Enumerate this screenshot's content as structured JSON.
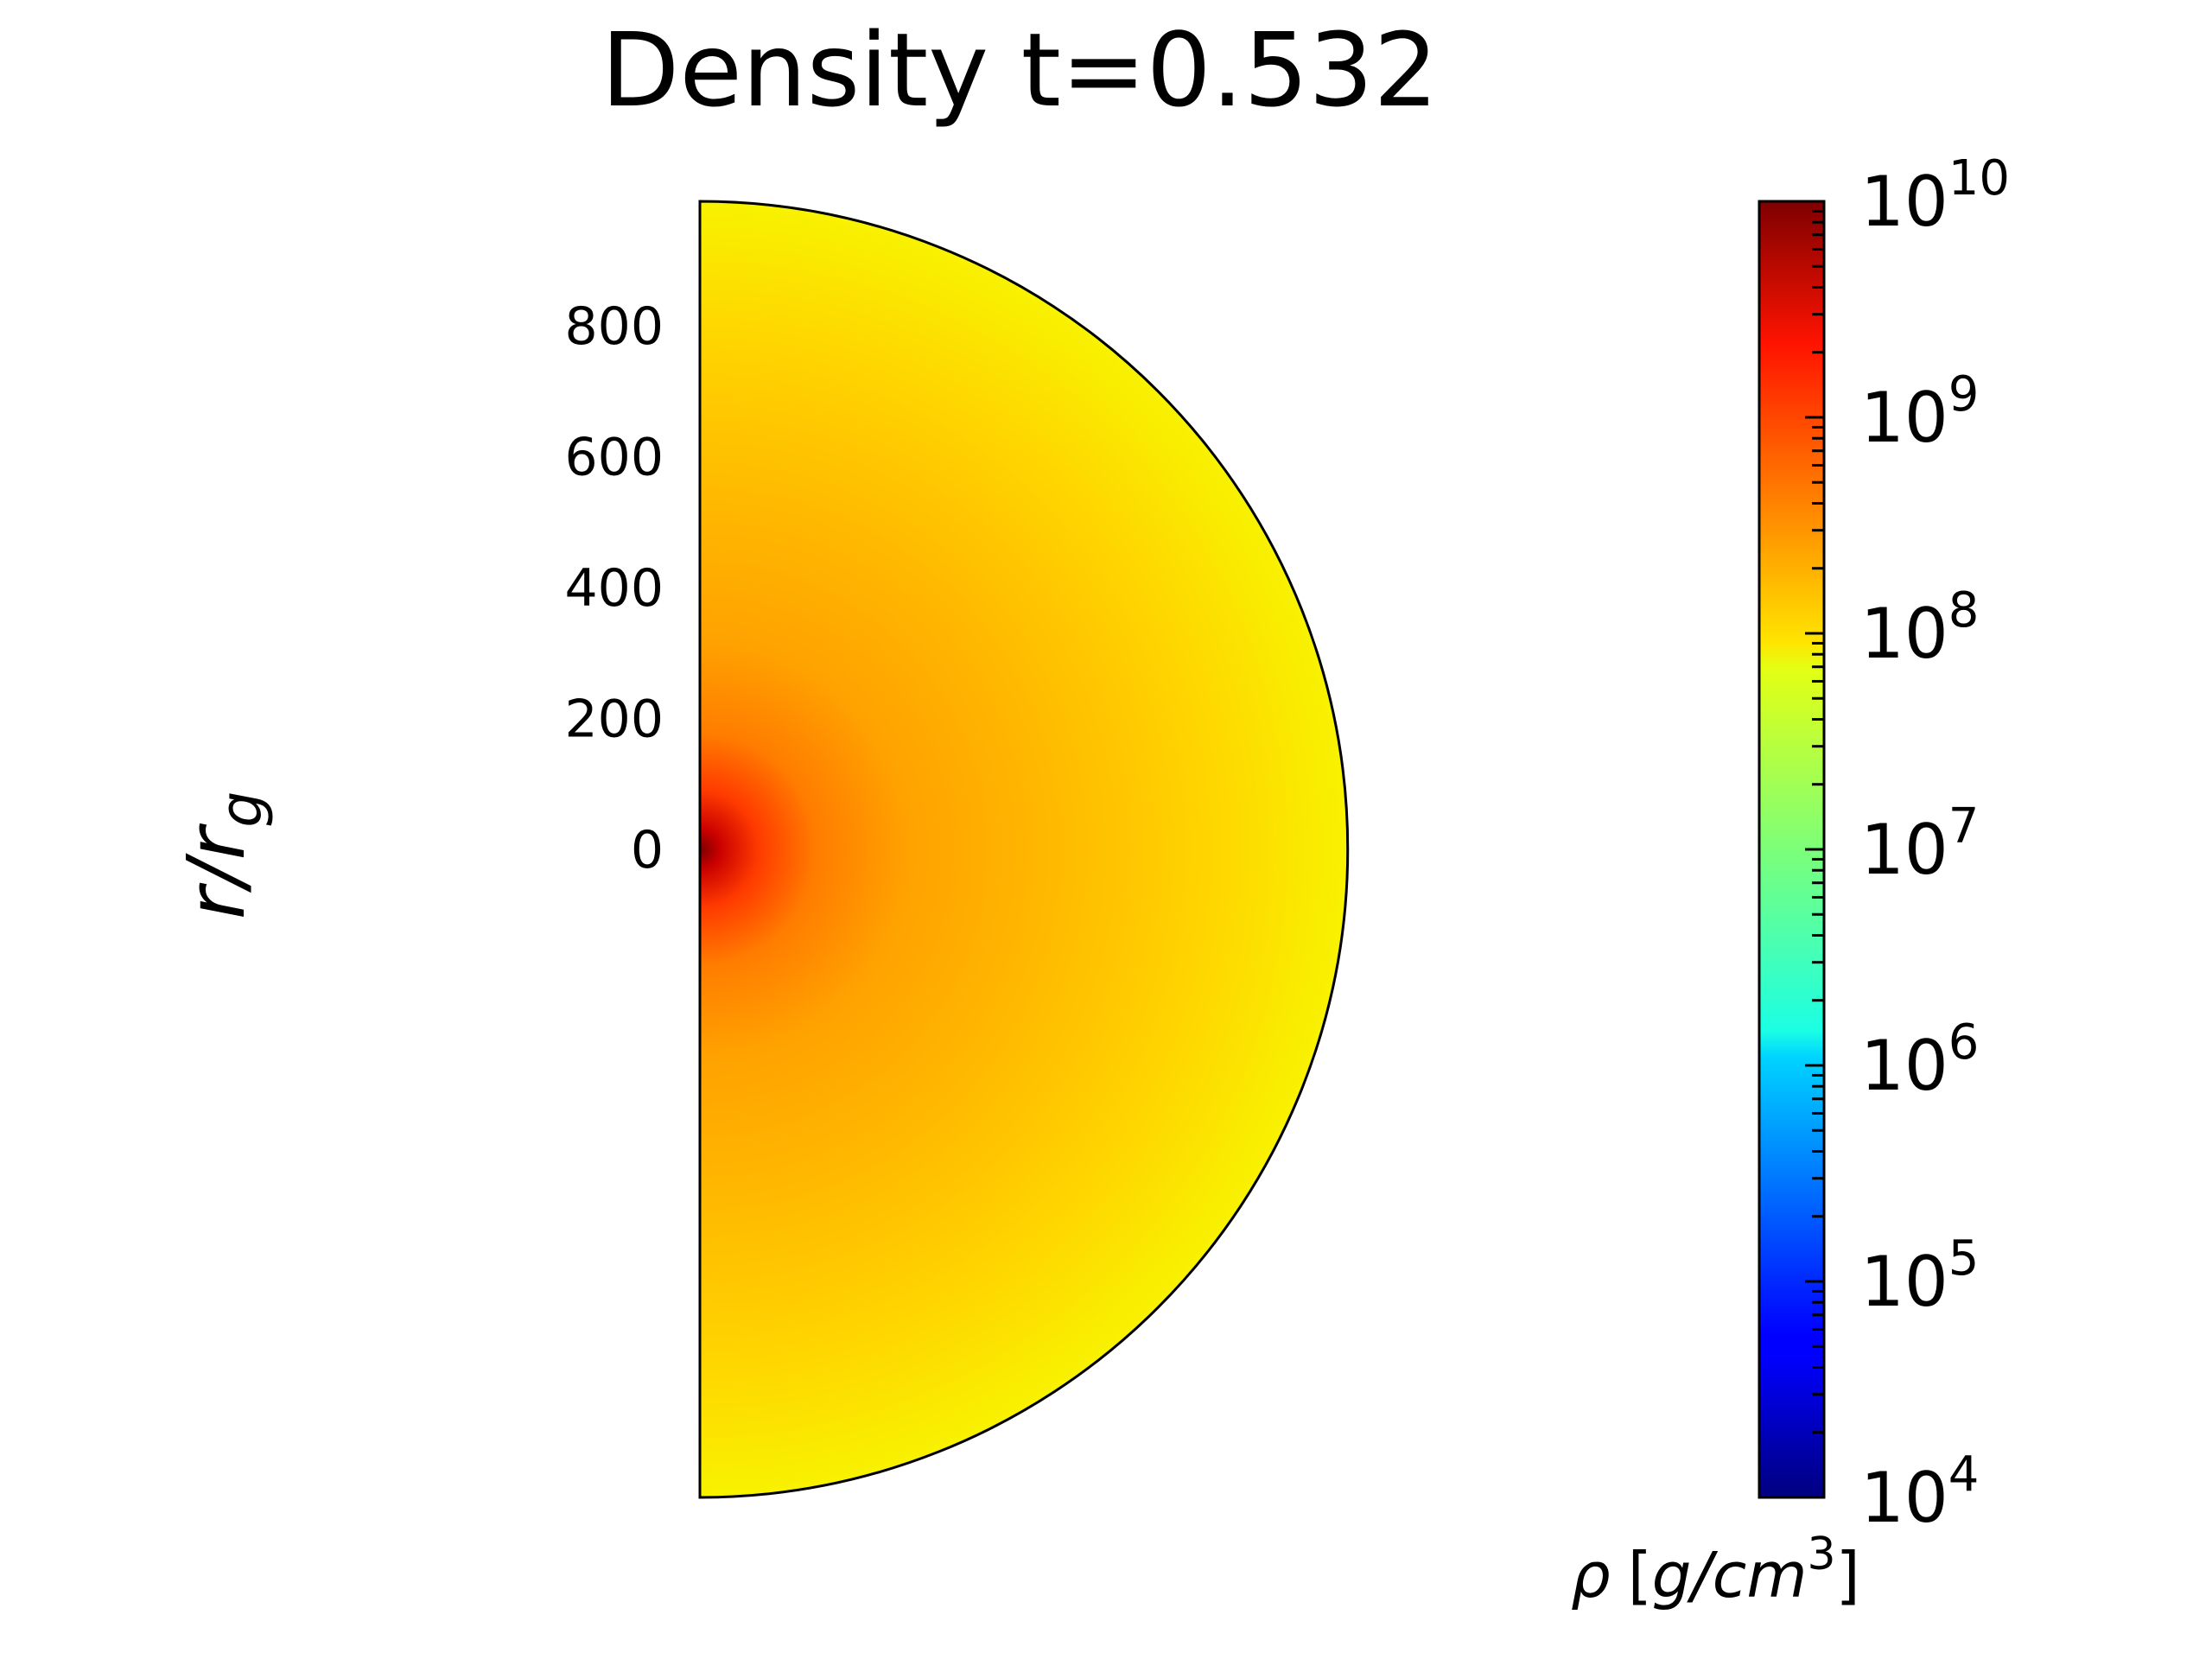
{
  "chart_data": {
    "type": "heatmap",
    "title": "Density t=0.532",
    "ylabel": "r",
    "ylabel_subscript": "g",
    "ylabel_sep": "/",
    "ylabel_base": "r",
    "y_ticks": [
      {
        "value": 800,
        "label": "800"
      },
      {
        "value": 600,
        "label": "600"
      },
      {
        "value": 400,
        "label": "400"
      },
      {
        "value": 200,
        "label": "200"
      },
      {
        "value": 0,
        "label": "0"
      }
    ],
    "domain": {
      "shape": "half-disk",
      "r_max": 990,
      "y_range": [
        -990,
        990
      ]
    },
    "colormap": "jet",
    "scale": "log",
    "colorbar": {
      "range_exponent": [
        4,
        10
      ],
      "tick_base": "10",
      "ticks": [
        {
          "exp": 10,
          "label": "10"
        },
        {
          "exp": 9,
          "label": "9"
        },
        {
          "exp": 8,
          "label": "8"
        },
        {
          "exp": 7,
          "label": "7"
        },
        {
          "exp": 6,
          "label": "6"
        },
        {
          "exp": 5,
          "label": "5"
        },
        {
          "exp": 4,
          "label": "4"
        }
      ],
      "label_sym": "ρ",
      "label_unit_open": "[",
      "label_unit": "g/cm",
      "label_unit_sup": "3",
      "label_unit_close": "]"
    },
    "field": {
      "core_log_density": 9.9,
      "mid_log_density": 8.3,
      "edge_log_density": 7.9,
      "core_at_r": 0
    }
  }
}
